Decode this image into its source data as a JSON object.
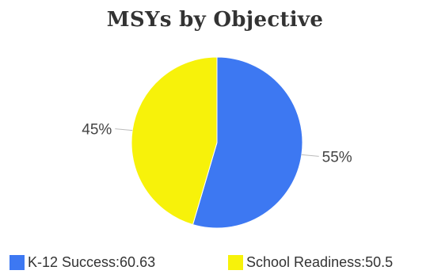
{
  "chart_data": {
    "type": "pie",
    "title": "MSYs by Objective",
    "slices": [
      {
        "name": "K-12 Success",
        "value": 60.63,
        "percent_label": "55%",
        "legend_label": "K-12 Success:60.63",
        "color": "#3D78F2"
      },
      {
        "name": "School Readiness",
        "value": 50.5,
        "percent_label": "45%",
        "legend_label": "School Readiness:50.5",
        "color": "#F7F20A"
      }
    ],
    "legend_position": "bottom"
  }
}
